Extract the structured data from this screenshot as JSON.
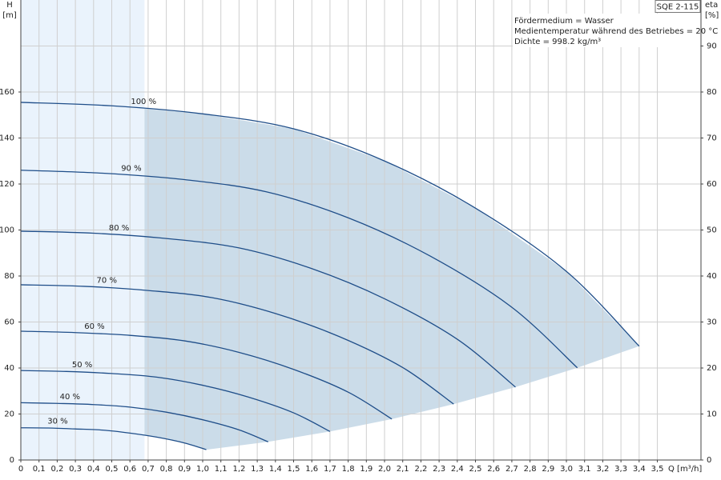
{
  "chart_data": {
    "type": "line",
    "model": "SQE 2-115",
    "info": [
      "Fördermedium = Wasser",
      "Medientemperatur während des Betriebes = 20 °C",
      "Dichte = 998.2 kg/m³"
    ],
    "ylabel": "H",
    "ylabel_unit": "[m]",
    "y2label": "eta",
    "y2label_unit": "[%]",
    "xlabel": "Q [m³/h]",
    "xlim": [
      0,
      3.74
    ],
    "ylim": [
      0,
      200
    ],
    "y2lim": [
      0,
      100
    ],
    "xticks": [
      0,
      {
        "value": 0.1,
        "label": "0,1"
      },
      {
        "value": 0.2,
        "label": "0,2"
      },
      {
        "value": 0.3,
        "label": "0,3"
      },
      {
        "value": 0.4,
        "label": "0,4"
      },
      {
        "value": 0.5,
        "label": "0,5"
      },
      {
        "value": 0.6,
        "label": "0,6"
      },
      {
        "value": 0.7,
        "label": "0,7"
      },
      {
        "value": 0.8,
        "label": "0,8"
      },
      {
        "value": 0.9,
        "label": "0,9"
      },
      {
        "value": 1,
        "label": "1,0"
      },
      {
        "value": 1.1,
        "label": "1,1"
      },
      {
        "value": 1.2,
        "label": "1,2"
      },
      {
        "value": 1.3,
        "label": "1,3"
      },
      {
        "value": 1.4,
        "label": "1,4"
      },
      {
        "value": 1.5,
        "label": "1,5"
      },
      {
        "value": 1.6,
        "label": "1,6"
      },
      {
        "value": 1.7,
        "label": "1,7"
      },
      {
        "value": 1.8,
        "label": "1,8"
      },
      {
        "value": 1.9,
        "label": "1,9"
      },
      {
        "value": 2,
        "label": "2,0"
      },
      {
        "value": 2.1,
        "label": "2,1"
      },
      {
        "value": 2.2,
        "label": "2,2"
      },
      {
        "value": 2.3,
        "label": "2,3"
      },
      {
        "value": 2.4,
        "label": "2,4"
      },
      {
        "value": 2.5,
        "label": "2,5"
      },
      {
        "value": 2.6,
        "label": "2,6"
      },
      {
        "value": 2.7,
        "label": "2,7"
      },
      {
        "value": 2.8,
        "label": "2,8"
      },
      {
        "value": 2.9,
        "label": "2,9"
      },
      {
        "value": 3,
        "label": "3,0"
      },
      {
        "value": 3.1,
        "label": "3,1"
      },
      {
        "value": 3.2,
        "label": "3,2"
      },
      {
        "value": 3.3,
        "label": "3,3"
      },
      {
        "value": 3.4,
        "label": "3,4"
      },
      {
        "value": 3.5,
        "label": "3,5"
      }
    ],
    "yticks": [
      0,
      20,
      40,
      60,
      80,
      100,
      120,
      140,
      160
    ],
    "y2ticks": [
      0,
      10,
      20,
      30,
      40,
      50,
      60,
      70,
      80,
      90
    ],
    "grid": true,
    "range_x": [
      0,
      0.68
    ],
    "series": [
      {
        "name": "100 %",
        "color": "#1f4e89",
        "x": [
          0,
          0.5,
          1,
          1.5,
          2,
          2.5,
          3,
          3.4
        ],
        "values": [
          155.5,
          154,
          150.5,
          144,
          130,
          109.5,
          82,
          49.5
        ]
      },
      {
        "name": "90 %",
        "color": "#1f4e89",
        "x": [
          0,
          0.45,
          0.9,
          1.35,
          1.8,
          2.25,
          2.7,
          3.06
        ],
        "values": [
          126,
          124.7,
          121.9,
          116.6,
          105.3,
          88.7,
          66.4,
          40.1
        ]
      },
      {
        "name": "80 %",
        "color": "#1f4e89",
        "x": [
          0,
          0.4,
          0.8,
          1.2,
          1.6,
          2.0,
          2.4,
          2.72
        ],
        "values": [
          99.5,
          98.6,
          96.3,
          92.2,
          83.2,
          70.1,
          52.5,
          31.7
        ]
      },
      {
        "name": "70 %",
        "color": "#1f4e89",
        "x": [
          0,
          0.35,
          0.7,
          1.05,
          1.4,
          1.75,
          2.1,
          2.38
        ],
        "values": [
          76.2,
          75.5,
          73.7,
          70.6,
          63.7,
          53.7,
          40.2,
          24.3
        ]
      },
      {
        "name": "60 %",
        "color": "#1f4e89",
        "x": [
          0,
          0.3,
          0.6,
          0.9,
          1.2,
          1.5,
          1.8,
          2.04
        ],
        "values": [
          56,
          55.4,
          54.2,
          51.8,
          46.8,
          39.4,
          29.5,
          17.8
        ]
      },
      {
        "name": "50 %",
        "color": "#1f4e89",
        "x": [
          0,
          0.25,
          0.5,
          0.75,
          1,
          1.25,
          1.5,
          1.7
        ],
        "values": [
          38.9,
          38.5,
          37.6,
          36,
          32.5,
          27.4,
          20.5,
          12.4
        ]
      },
      {
        "name": "40 %",
        "color": "#1f4e89",
        "x": [
          0,
          0.2,
          0.4,
          0.6,
          0.8,
          1,
          1.2,
          1.36
        ],
        "values": [
          24.9,
          24.6,
          24.1,
          23,
          20.8,
          17.5,
          13.1,
          7.9
        ]
      },
      {
        "name": "30 %",
        "color": "#1f4e89",
        "x": [
          0,
          0.15,
          0.3,
          0.45,
          0.6,
          0.75,
          0.9,
          1.02
        ],
        "values": [
          14,
          13.9,
          13.5,
          13,
          11.7,
          9.9,
          7.4,
          4.5
        ]
      }
    ]
  }
}
